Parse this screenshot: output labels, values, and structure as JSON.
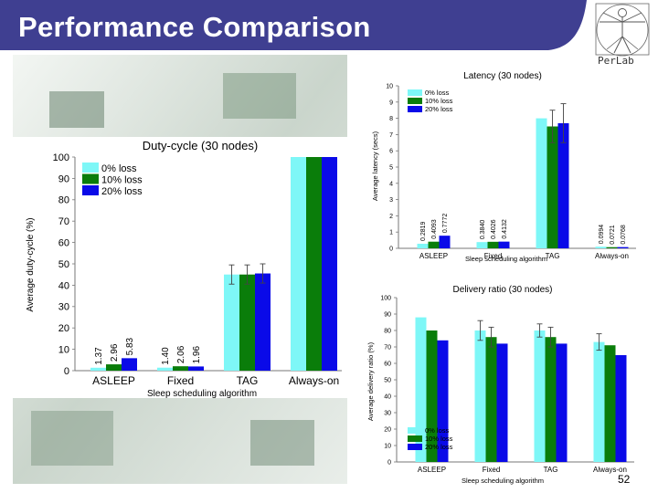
{
  "slide": {
    "title": "Performance Comparison",
    "logo_text": "PerLab",
    "page_number": "52",
    "title_bar_color": "#3f3f91"
  },
  "chart_data": [
    {
      "id": "duty",
      "type": "bar",
      "title": "Duty-cycle (30 nodes)",
      "xlabel": "Sleep scheduling algorithm",
      "ylabel": "Average duty-cycle (%)",
      "ylim": [
        0,
        100
      ],
      "yticks": [
        0,
        10,
        20,
        30,
        40,
        50,
        60,
        70,
        80,
        90,
        100
      ],
      "categories": [
        "ASLEEP",
        "Fixed",
        "TAG",
        "Always-on"
      ],
      "series": [
        {
          "name": "0% loss",
          "color": "#7ef7f7",
          "values": [
            1.37,
            1.4,
            45,
            100
          ]
        },
        {
          "name": "10% loss",
          "color": "#0a7d0a",
          "values": [
            2.96,
            2.06,
            45,
            100
          ]
        },
        {
          "name": "20% loss",
          "color": "#0a0ae8",
          "values": [
            5.83,
            1.96,
            45.5,
            100
          ]
        }
      ],
      "error": [
        [
          0,
          0,
          4.5,
          0
        ],
        [
          0,
          0,
          4.5,
          0
        ],
        [
          0,
          0,
          4.5,
          0
        ]
      ],
      "data_labels": [
        [
          "1.37",
          "1.40",
          "",
          ""
        ],
        [
          "2.96",
          "2.06",
          "",
          ""
        ],
        [
          "5.83",
          "1.96",
          "",
          ""
        ]
      ],
      "legend": "top-left",
      "grid": false
    },
    {
      "id": "latency",
      "type": "bar",
      "title": "Latency (30 nodes)",
      "xlabel": "Sleep scheduling algorithm",
      "ylabel": "Average latency (secs)",
      "ylim": [
        0,
        10
      ],
      "yticks": [
        0,
        1,
        2,
        3,
        4,
        5,
        6,
        7,
        8,
        9,
        10
      ],
      "categories": [
        "ASLEEP",
        "Fixed",
        "TAG",
        "Always-on"
      ],
      "series": [
        {
          "name": "0% loss",
          "color": "#7ef7f7",
          "values": [
            0.2819,
            0.384,
            8.0,
            0.0994
          ]
        },
        {
          "name": "10% loss",
          "color": "#0a7d0a",
          "values": [
            0.4093,
            0.4026,
            7.5,
            0.0721
          ]
        },
        {
          "name": "20% loss",
          "color": "#0a0ae8",
          "values": [
            0.7772,
            0.4132,
            7.7,
            0.0768
          ]
        }
      ],
      "error": [
        [
          0,
          0,
          0,
          0
        ],
        [
          0,
          0,
          1.0,
          0
        ],
        [
          0,
          0,
          1.2,
          0
        ]
      ],
      "data_labels": [
        [
          "0.2819",
          "0.3840",
          "",
          "0.0994"
        ],
        [
          "0.4093",
          "0.4026",
          "",
          "0.0721"
        ],
        [
          "0.7772",
          "0.4132",
          "",
          "0.0768"
        ]
      ],
      "legend": "top-left",
      "grid": false
    },
    {
      "id": "delivery",
      "type": "bar",
      "title": "Delivery ratio (30 nodes)",
      "xlabel": "Sleep scheduling algorithm",
      "ylabel": "Average delivery ratio (%)",
      "ylim": [
        0,
        100
      ],
      "yticks": [
        0,
        10,
        20,
        30,
        40,
        50,
        60,
        70,
        80,
        90,
        100
      ],
      "categories": [
        "ASLEEP",
        "Fixed",
        "TAG",
        "Always-on"
      ],
      "series": [
        {
          "name": "0% loss",
          "color": "#7ef7f7",
          "values": [
            88,
            80,
            80,
            73
          ]
        },
        {
          "name": "10% loss",
          "color": "#0a7d0a",
          "values": [
            80,
            76,
            76,
            71
          ]
        },
        {
          "name": "20% loss",
          "color": "#0a0ae8",
          "values": [
            74,
            72,
            72,
            65
          ]
        }
      ],
      "error": [
        [
          0,
          6,
          4,
          5
        ],
        [
          0,
          6,
          6,
          0
        ],
        [
          0,
          0,
          0,
          0
        ]
      ],
      "data_labels": [
        [
          "",
          "",
          "",
          ""
        ],
        [
          "",
          "",
          "",
          ""
        ],
        [
          "",
          "",
          "",
          ""
        ]
      ],
      "legend": "bottom-left",
      "grid": false
    }
  ]
}
